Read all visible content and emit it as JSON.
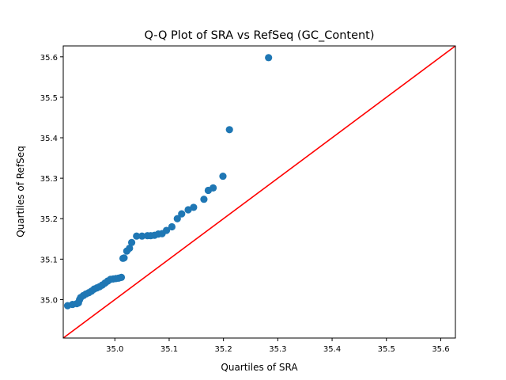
{
  "chart_data": {
    "type": "scatter",
    "title": "Q-Q Plot of SRA vs RefSeq (GC_Content)",
    "xlabel": "Quartiles of SRA",
    "ylabel": "Quartiles of RefSeq",
    "xlim": [
      34.905,
      35.627
    ],
    "ylim": [
      34.905,
      35.627
    ],
    "x_ticks": [
      "35.0",
      "35.1",
      "35.2",
      "35.3",
      "35.4",
      "35.5",
      "35.6"
    ],
    "y_ticks": [
      "35.0",
      "35.1",
      "35.2",
      "35.3",
      "35.4",
      "35.5",
      "35.6"
    ],
    "grid": false,
    "legend": "none",
    "series": [
      {
        "marker_color": "#1f77b4",
        "points": [
          [
            34.913,
            34.985
          ],
          [
            34.922,
            34.988
          ],
          [
            34.93,
            34.99
          ],
          [
            34.933,
            34.992
          ],
          [
            34.935,
            35.0
          ],
          [
            34.937,
            35.005
          ],
          [
            34.942,
            35.01
          ],
          [
            34.947,
            35.014
          ],
          [
            34.952,
            35.017
          ],
          [
            34.957,
            35.021
          ],
          [
            34.962,
            35.026
          ],
          [
            34.967,
            35.029
          ],
          [
            34.972,
            35.032
          ],
          [
            34.977,
            35.036
          ],
          [
            34.982,
            35.041
          ],
          [
            34.987,
            35.046
          ],
          [
            34.992,
            35.05
          ],
          [
            34.997,
            35.051
          ],
          [
            35.002,
            35.052
          ],
          [
            35.007,
            35.053
          ],
          [
            35.012,
            35.055
          ],
          [
            35.015,
            35.102
          ],
          [
            35.017,
            35.103
          ],
          [
            35.022,
            35.12
          ],
          [
            35.027,
            35.127
          ],
          [
            35.031,
            35.141
          ],
          [
            35.04,
            35.157
          ],
          [
            35.05,
            35.157
          ],
          [
            35.06,
            35.158
          ],
          [
            35.066,
            35.158
          ],
          [
            35.073,
            35.159
          ],
          [
            35.08,
            35.162
          ],
          [
            35.087,
            35.163
          ],
          [
            35.095,
            35.171
          ],
          [
            35.105,
            35.18
          ],
          [
            35.115,
            35.2
          ],
          [
            35.123,
            35.212
          ],
          [
            35.135,
            35.222
          ],
          [
            35.145,
            35.228
          ],
          [
            35.164,
            35.248
          ],
          [
            35.172,
            35.27
          ],
          [
            35.181,
            35.276
          ],
          [
            35.199,
            35.305
          ],
          [
            35.211,
            35.42
          ],
          [
            35.283,
            35.598
          ]
        ]
      },
      {
        "line_color": "#ff0000",
        "line": [
          [
            34.905,
            34.905
          ],
          [
            35.627,
            35.627
          ]
        ]
      }
    ]
  }
}
